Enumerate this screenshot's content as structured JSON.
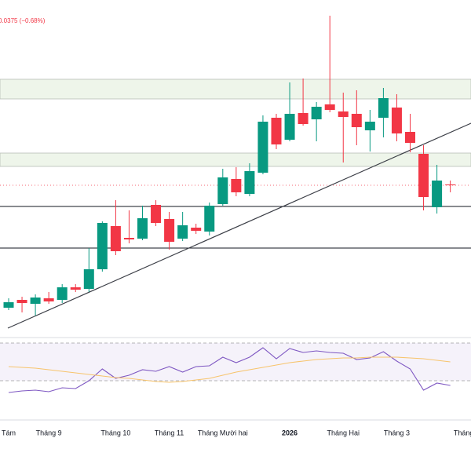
{
  "chart_data": {
    "type": "candlestick",
    "header": "0.0375 (−0.68%)",
    "categories": [
      "Tám",
      null,
      null,
      "Tháng 9",
      null,
      null,
      null,
      null,
      "Tháng 10",
      null,
      null,
      null,
      "Tháng 11",
      null,
      null,
      null,
      "Tháng Mười hai",
      null,
      null,
      null,
      null,
      "2026",
      null,
      null,
      null,
      "Tháng Hai",
      null,
      null,
      null,
      "Tháng 3",
      null,
      null,
      null,
      null,
      "Tháng"
    ],
    "open": [
      208,
      218,
      213,
      220,
      218,
      234,
      232,
      257,
      312,
      297,
      296,
      339,
      321,
      296,
      310,
      305,
      340,
      372,
      353,
      380,
      450,
      422,
      456,
      448,
      467,
      458,
      455,
      434,
      450,
      463,
      432,
      404,
      336,
      365,
      null
    ],
    "high": [
      220,
      222,
      225,
      228,
      238,
      238,
      284,
      318,
      345,
      332,
      338,
      345,
      330,
      330,
      315,
      342,
      385,
      387,
      392,
      453,
      455,
      495,
      500,
      470,
      580,
      482,
      485,
      460,
      488,
      480,
      455,
      415,
      390,
      370,
      null
    ],
    "low": [
      205,
      202,
      198,
      213,
      214,
      228,
      228,
      254,
      275,
      290,
      294,
      312,
      282,
      293,
      302,
      300,
      338,
      350,
      350,
      378,
      410,
      420,
      440,
      420,
      457,
      393,
      415,
      407,
      425,
      420,
      406,
      332,
      328,
      355,
      null
    ],
    "close": [
      215,
      214,
      221,
      216,
      234,
      231,
      257,
      316,
      280,
      295,
      322,
      316,
      292,
      313,
      306,
      338,
      374,
      355,
      382,
      445,
      416,
      455,
      442,
      464,
      460,
      451,
      438,
      445,
      475,
      430,
      418,
      349,
      370,
      364,
      null
    ],
    "up_color": "#089981",
    "down_color": "#f23645",
    "ylim": [
      170,
      600
    ],
    "indicators": [
      {
        "color": "#7e57c2",
        "values": [
          100,
          102,
          103,
          101,
          106,
          105,
          115,
          130,
          118,
          122,
          129,
          127,
          133,
          126,
          133,
          134,
          145,
          138,
          145,
          157,
          143,
          156,
          151,
          153,
          151,
          150,
          142,
          144,
          152,
          140,
          130,
          103,
          112,
          109,
          null
        ]
      },
      {
        "color": "#f7c46c",
        "values": [
          133,
          132,
          131,
          129,
          127,
          125,
          123,
          121,
          119,
          118,
          116,
          114,
          113,
          114,
          116,
          118,
          122,
          126,
          129,
          132,
          135,
          138,
          140,
          142,
          143,
          144,
          144,
          145,
          145,
          145,
          144,
          143,
          141,
          139,
          null
        ]
      }
    ],
    "indicator_ylim": [
      65,
      170
    ]
  }
}
